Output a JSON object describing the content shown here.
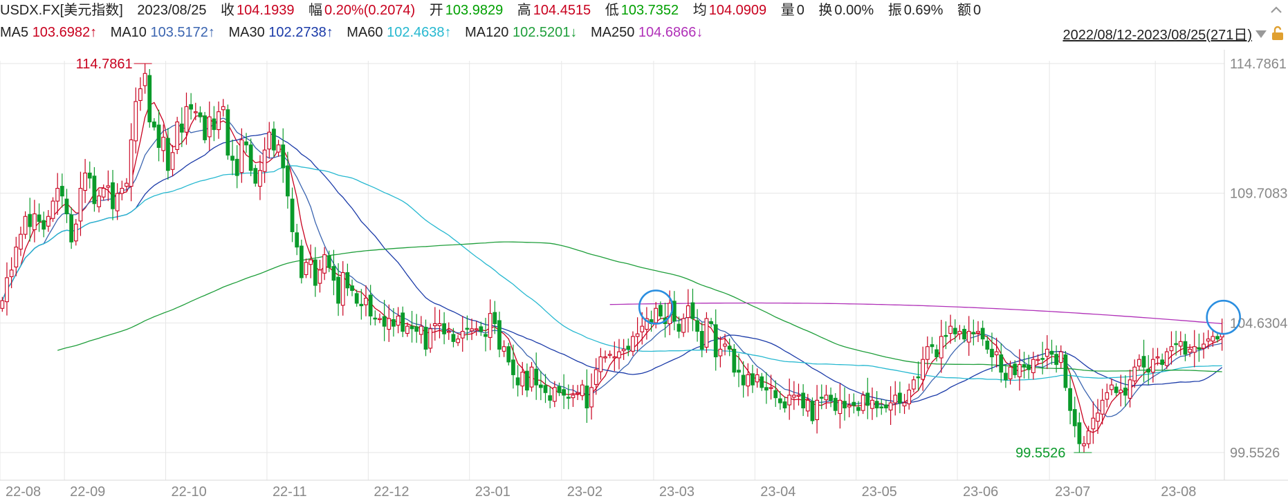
{
  "header": {
    "symbol": "USDX.FX[美元指数]",
    "date": "2023/08/25",
    "close_label": "收",
    "close_value": "104.1939",
    "range_label": "幅",
    "range_value": "0.20%(0.2074)",
    "open_label": "开",
    "open_value": "103.9829",
    "high_label": "高",
    "high_value": "104.4515",
    "low_label": "低",
    "low_value": "103.7352",
    "avg_label": "均",
    "avg_value": "104.0909",
    "vol_label": "量",
    "vol_value": "0",
    "turnover_label": "换",
    "turnover_value": "0.00%",
    "amplitude_label": "振",
    "amplitude_value": "0.69%",
    "amount_label": "额",
    "amount_value": "0"
  },
  "ma_legend": [
    {
      "label": "MA5",
      "value": "103.6982↑",
      "color": "#c8001e"
    },
    {
      "label": "MA10",
      "value": "103.5172↑",
      "color": "#3a64b0"
    },
    {
      "label": "MA30",
      "value": "102.2738↑",
      "color": "#1a3aa8"
    },
    {
      "label": "MA60",
      "value": "102.4638↑",
      "color": "#26b8d0"
    },
    {
      "label": "MA120",
      "value": "102.5201↓",
      "color": "#1e9e3a"
    },
    {
      "label": "MA250",
      "value": "104.6866↓",
      "color": "#b030b8"
    }
  ],
  "range_text": "2022/08/12-2023/08/25(271日)",
  "icons": {
    "dropdown": "dropdown-triangle-icon",
    "settings": "lock-icon",
    "collapse": "collapse-icon"
  },
  "colors": {
    "up": "#c8001e",
    "down": "#0a9a2a",
    "grid": "#e6e6e6",
    "highlight": "#2a8ee0"
  },
  "chart_data": {
    "type": "candlestick",
    "ylim": [
      99.5526,
      114.7861
    ],
    "y_ticks": [
      "114.7861",
      "109.7083",
      "104.6304",
      "99.5526"
    ],
    "x_ticks": [
      "22-08",
      "22-09",
      "22-10",
      "22-11",
      "22-12",
      "23-01",
      "23-02",
      "23-03",
      "23-04",
      "23-05",
      "23-06",
      "23-07",
      "23-08"
    ],
    "max_label": "114.7861",
    "min_label": "99.5526",
    "series_close": [
      105.5,
      106.4,
      106.7,
      107.6,
      108.1,
      108.8,
      108.4,
      108.9,
      108.6,
      108.3,
      108.8,
      109.4,
      109.9,
      109.6,
      108.9,
      107.8,
      108.5,
      109.9,
      110.5,
      110.3,
      109.3,
      109.6,
      109.9,
      110.0,
      109.1,
      109.7,
      109.9,
      110.1,
      111.8,
      113.3,
      113.8,
      114.4,
      112.5,
      112.3,
      111.5,
      111.9,
      110.6,
      111.3,
      112.5,
      112.1,
      113.1,
      113.0,
      112.9,
      112.7,
      111.8,
      112.7,
      112.2,
      112.9,
      113.1,
      111.2,
      111.0,
      110.4,
      111.8,
      111.6,
      110.6,
      110.1,
      110.6,
      111.4,
      112.1,
      111.4,
      111.6,
      110.7,
      109.6,
      108.2,
      107.6,
      106.4,
      107.0,
      107.1,
      106.1,
      106.7,
      107.3,
      106.8,
      106.3,
      105.4,
      106.6,
      106.0,
      105.9,
      105.4,
      105.3,
      105.6,
      104.9,
      104.8,
      104.8,
      104.5,
      104.8,
      104.5,
      104.9,
      104.3,
      104.5,
      104.4,
      104.3,
      104.5,
      103.6,
      104.4,
      104.6,
      104.6,
      104.2,
      104.3,
      103.9,
      104.0,
      104.3,
      104.4,
      104.4,
      104.4,
      104.3,
      104.1,
      105.0,
      104.6,
      103.6,
      103.7,
      103.1,
      102.6,
      102.2,
      102.7,
      102.0,
      102.9,
      102.2,
      102.1,
      101.9,
      101.6,
      102.1,
      101.9,
      101.8,
      101.7,
      101.8,
      101.9,
      102.2,
      101.3,
      102.1,
      102.8,
      103.3,
      103.3,
      103.4,
      103.3,
      103.5,
      103.6,
      103.6,
      104.1,
      104.2,
      104.5,
      104.8,
      104.6,
      105.2,
      104.9,
      104.6,
      105.4,
      104.7,
      104.3,
      104.8,
      105.3,
      104.8,
      104.3,
      103.6,
      104.8,
      104.6,
      103.3,
      103.6,
      103.8,
      103.6,
      102.7,
      102.7,
      102.2,
      102.6,
      102.2,
      102.6,
      102.1,
      102.0,
      102.1,
      101.7,
      101.5,
      101.3,
      101.8,
      101.8,
      101.8,
      101.3,
      101.6,
      100.8,
      101.6,
      101.7,
      101.8,
      101.6,
      101.2,
      101.6,
      101.3,
      101.4,
      101.4,
      101.2,
      101.8,
      101.4,
      101.6,
      101.3,
      101.3,
      101.3,
      101.5,
      101.8,
      101.5,
      101.5,
      102.0,
      102.4,
      102.5,
      103.2,
      103.7,
      103.7,
      103.3,
      104.1,
      104.1,
      104.5,
      104.2,
      104.3,
      104.0,
      104.3,
      104.2,
      104.3,
      104.0,
      103.6,
      103.3,
      103.5,
      102.7,
      102.4,
      102.9,
      102.6,
      103.0,
      102.9,
      102.8,
      103.2,
      103.2,
      103.2,
      103.6,
      103.4,
      103.0,
      103.5,
      102.1,
      101.2,
      100.6,
      99.9,
      99.9,
      100.4,
      100.9,
      101.1,
      101.6,
      101.9,
      102.2,
      101.9,
      102.0,
      101.8,
      102.4,
      102.9,
      103.2,
      102.9,
      102.7,
      103.2,
      103.3,
      103.0,
      103.5,
      103.7,
      103.8,
      103.9,
      103.4,
      103.6,
      103.7,
      103.6,
      103.8,
      104.0,
      104.1,
      104.0,
      104.2
    ]
  }
}
